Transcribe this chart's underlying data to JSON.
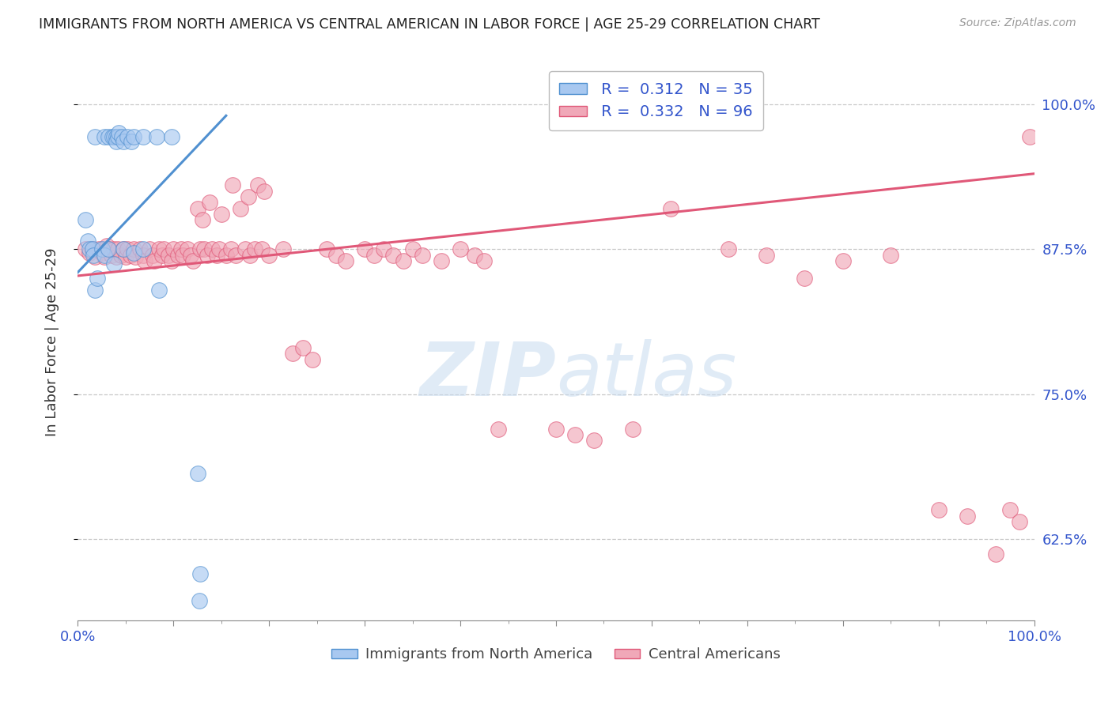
{
  "title": "IMMIGRANTS FROM NORTH AMERICA VS CENTRAL AMERICAN IN LABOR FORCE | AGE 25-29 CORRELATION CHART",
  "source": "Source: ZipAtlas.com",
  "ylabel": "In Labor Force | Age 25-29",
  "ytick_labels": [
    "62.5%",
    "75.0%",
    "87.5%",
    "100.0%"
  ],
  "ytick_values": [
    0.625,
    0.75,
    0.875,
    1.0
  ],
  "xmin": 0.0,
  "xmax": 1.0,
  "ymin": 0.555,
  "ymax": 1.035,
  "blue_color": "#A8C8F0",
  "pink_color": "#F0A8B8",
  "blue_line_color": "#5090D0",
  "pink_line_color": "#E05878",
  "blue_edge_color": "#5090D0",
  "pink_edge_color": "#E05878",
  "watermark_color": "#C8DCF0",
  "grid_color": "#C8C8C8",
  "background_color": "#ffffff",
  "title_color": "#222222",
  "source_color": "#999999",
  "tick_label_color": "#3355CC",
  "legend_r_color_blue": "#3355CC",
  "legend_n_color_blue": "#CC3355",
  "legend_edge_color": "#BBBBBB",
  "blue_scatter_x": [
    0.018,
    0.028,
    0.032,
    0.036,
    0.038,
    0.04,
    0.04,
    0.042,
    0.043,
    0.046,
    0.048,
    0.052,
    0.056,
    0.058,
    0.068,
    0.082,
    0.098,
    0.008,
    0.01,
    0.012,
    0.015,
    0.016,
    0.018,
    0.02,
    0.025,
    0.028,
    0.032,
    0.038,
    0.048,
    0.058,
    0.068,
    0.085,
    0.125,
    0.127,
    0.128
  ],
  "blue_scatter_y": [
    0.972,
    0.972,
    0.972,
    0.972,
    0.972,
    0.972,
    0.968,
    0.972,
    0.975,
    0.972,
    0.968,
    0.972,
    0.968,
    0.972,
    0.972,
    0.972,
    0.972,
    0.9,
    0.882,
    0.875,
    0.875,
    0.87,
    0.84,
    0.85,
    0.875,
    0.87,
    0.875,
    0.862,
    0.875,
    0.872,
    0.875,
    0.84,
    0.682,
    0.572,
    0.595
  ],
  "pink_scatter_x": [
    0.008,
    0.012,
    0.015,
    0.018,
    0.022,
    0.025,
    0.028,
    0.03,
    0.032,
    0.035,
    0.038,
    0.04,
    0.042,
    0.045,
    0.048,
    0.05,
    0.052,
    0.055,
    0.058,
    0.06,
    0.065,
    0.068,
    0.07,
    0.075,
    0.078,
    0.08,
    0.085,
    0.088,
    0.09,
    0.095,
    0.098,
    0.1,
    0.105,
    0.108,
    0.11,
    0.115,
    0.118,
    0.12,
    0.125,
    0.128,
    0.13,
    0.132,
    0.135,
    0.138,
    0.14,
    0.145,
    0.148,
    0.15,
    0.155,
    0.16,
    0.162,
    0.165,
    0.17,
    0.175,
    0.178,
    0.18,
    0.185,
    0.188,
    0.192,
    0.195,
    0.2,
    0.215,
    0.225,
    0.235,
    0.245,
    0.26,
    0.27,
    0.28,
    0.3,
    0.31,
    0.32,
    0.33,
    0.34,
    0.35,
    0.36,
    0.38,
    0.4,
    0.415,
    0.425,
    0.44,
    0.5,
    0.52,
    0.54,
    0.58,
    0.62,
    0.68,
    0.72,
    0.76,
    0.8,
    0.85,
    0.9,
    0.93,
    0.96,
    0.975,
    0.985,
    0.995
  ],
  "pink_scatter_y": [
    0.875,
    0.872,
    0.875,
    0.868,
    0.875,
    0.872,
    0.868,
    0.878,
    0.875,
    0.87,
    0.875,
    0.868,
    0.875,
    0.87,
    0.875,
    0.868,
    0.875,
    0.87,
    0.875,
    0.868,
    0.875,
    0.87,
    0.865,
    0.875,
    0.87,
    0.865,
    0.875,
    0.87,
    0.875,
    0.87,
    0.865,
    0.875,
    0.87,
    0.875,
    0.87,
    0.875,
    0.87,
    0.865,
    0.91,
    0.875,
    0.9,
    0.875,
    0.87,
    0.915,
    0.875,
    0.87,
    0.875,
    0.905,
    0.87,
    0.875,
    0.93,
    0.87,
    0.91,
    0.875,
    0.92,
    0.87,
    0.875,
    0.93,
    0.875,
    0.925,
    0.87,
    0.875,
    0.785,
    0.79,
    0.78,
    0.875,
    0.87,
    0.865,
    0.875,
    0.87,
    0.875,
    0.87,
    0.865,
    0.875,
    0.87,
    0.865,
    0.875,
    0.87,
    0.865,
    0.72,
    0.72,
    0.715,
    0.71,
    0.72,
    0.91,
    0.875,
    0.87,
    0.85,
    0.865,
    0.87,
    0.65,
    0.645,
    0.612,
    0.65,
    0.64,
    0.972
  ],
  "blue_line_x": [
    0.0,
    0.155
  ],
  "blue_line_y": [
    0.855,
    0.99
  ],
  "pink_line_x": [
    0.0,
    1.0
  ],
  "pink_line_y": [
    0.852,
    0.94
  ],
  "xtick_positions": [
    0.0,
    0.1,
    0.2,
    0.3,
    0.4,
    0.5,
    0.6,
    0.7,
    0.8,
    0.9,
    1.0
  ],
  "xtick_minor_positions": [
    0.05,
    0.15,
    0.25,
    0.35,
    0.45,
    0.55,
    0.65,
    0.75,
    0.85,
    0.95
  ]
}
